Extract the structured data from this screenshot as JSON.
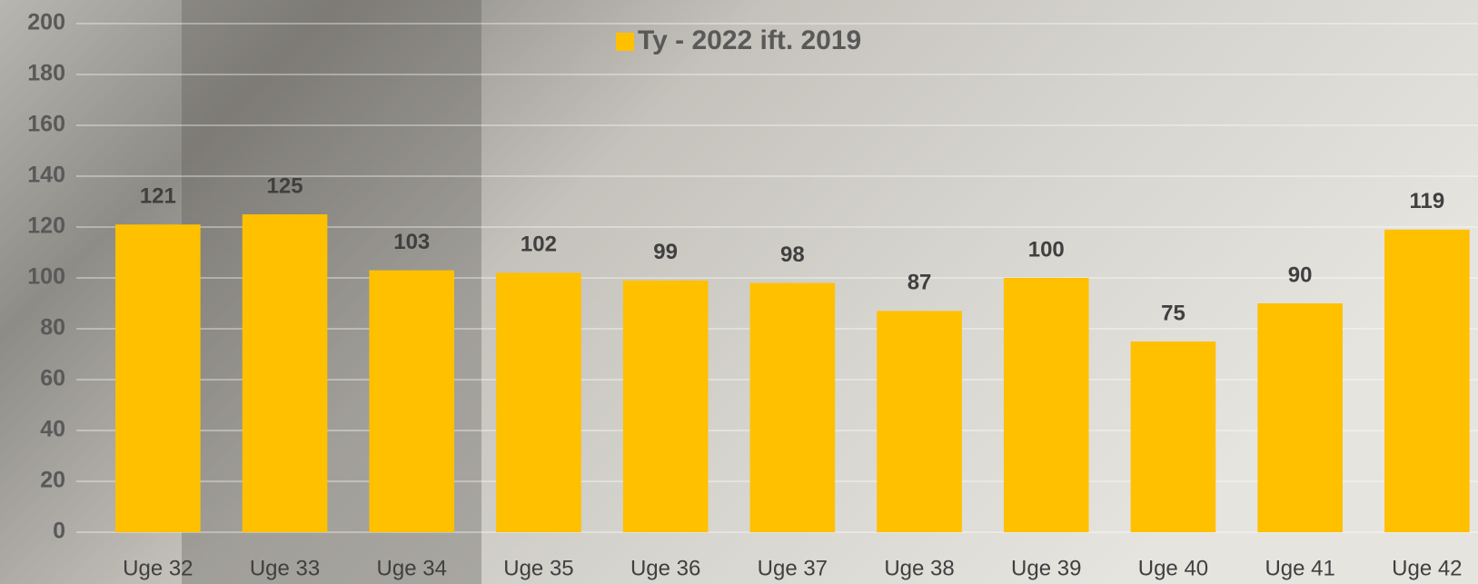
{
  "chart_data": {
    "type": "bar",
    "categories": [
      "Uge 32",
      "Uge 33",
      "Uge 34",
      "Uge 35",
      "Uge 36",
      "Uge 37",
      "Uge 38",
      "Uge 39",
      "Uge 40",
      "Uge 41",
      "Uge 42"
    ],
    "series": [
      {
        "name": "Ty - 2022 ift. 2019",
        "color": "#FFC000",
        "values": [
          121,
          125,
          103,
          102,
          99,
          98,
          87,
          100,
          75,
          90,
          119
        ]
      }
    ],
    "ylim": [
      0,
      200
    ],
    "yticks": [
      0,
      20,
      40,
      60,
      80,
      100,
      120,
      140,
      160,
      180,
      200
    ],
    "grid": true,
    "legend": "top"
  }
}
